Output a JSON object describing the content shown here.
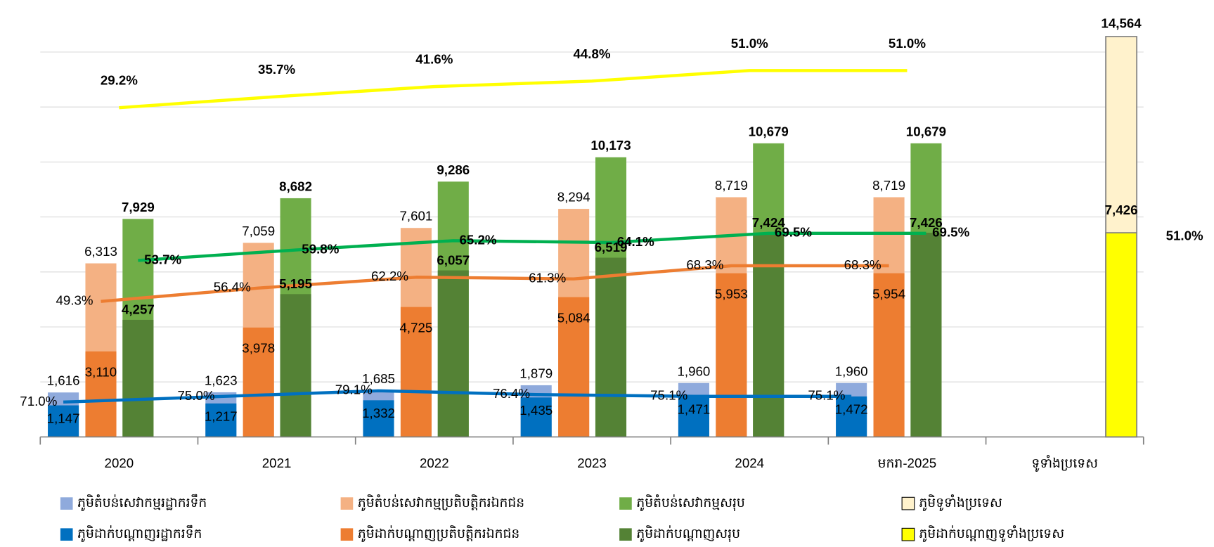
{
  "chart_data": {
    "type": "bar",
    "categories": [
      "2020",
      "2021",
      "2022",
      "2023",
      "2024",
      "មករា-2025",
      "ទូទាំងប្រទេស"
    ],
    "ylim": [
      0,
      15000
    ],
    "yticks": [
      0,
      2000,
      4000,
      6000,
      8000,
      10000,
      12000,
      14000
    ],
    "grid": true,
    "series": [
      {
        "name": "ភូមិតំបន់សេវាកម្មរដ្ឋាករទឹក",
        "color": "#8faadc",
        "values": [
          1616,
          1623,
          1685,
          1879,
          1960,
          1960,
          null
        ],
        "value_labels": [
          "1,616",
          "1,623",
          "1,685",
          "1,879",
          "1,960",
          "1,960",
          null
        ]
      },
      {
        "name": "ភូមិតំបន់សេវាកម្មប្រតិបត្តិករឯកជន",
        "color": "#f4b183",
        "values": [
          6313,
          7059,
          7601,
          8294,
          8719,
          8719,
          null
        ],
        "value_labels": [
          "6,313",
          "7,059",
          "7,601",
          "8,294",
          "8,719",
          "8,719",
          null
        ]
      },
      {
        "name": "ភូមិតំបន់សេវាកម្មសរុប",
        "color": "#70ad47",
        "values": [
          7929,
          8682,
          9286,
          10173,
          10679,
          10679,
          null
        ],
        "value_labels": [
          "7,929",
          "8,682",
          "9,286",
          "10,173",
          "10,679",
          "10,679",
          null
        ]
      },
      {
        "name": "ភូមិទូទាំងប្រទេស",
        "color": "#fff2cc",
        "values": [
          null,
          null,
          null,
          null,
          null,
          null,
          14564
        ],
        "value_labels": [
          null,
          null,
          null,
          null,
          null,
          null,
          "14,564"
        ]
      },
      {
        "name": "ភូមិដាក់បណ្ដាញរដ្ឋាករទឹក",
        "color": "#0070c0",
        "values": [
          1147,
          1217,
          1332,
          1435,
          1471,
          1472,
          null
        ],
        "value_labels": [
          "1,147",
          "1,217",
          "1,332",
          "1,435",
          "1,471",
          "1,472",
          null
        ]
      },
      {
        "name": "ភូមិដាក់បណ្ដាញប្រតិបត្តិករឯកជន",
        "color": "#ed7d31",
        "values": [
          3110,
          3978,
          4725,
          5084,
          5953,
          5954,
          null
        ],
        "value_labels": [
          "3,110",
          "3,978",
          "4,725",
          "5,084",
          "5,953",
          "5,954",
          null
        ]
      },
      {
        "name": "ភូមិដាក់បណ្ដាញសរុប",
        "color": "#548235",
        "values": [
          4257,
          5195,
          6057,
          6519,
          7424,
          7426,
          null
        ],
        "value_labels": [
          "4,257",
          "5,195",
          "6,057",
          "6,519",
          "7,424",
          "7,426",
          null
        ]
      },
      {
        "name": "ភូមិដាក់បណ្ដាញទូទាំងប្រទេស",
        "color": "#ffff00",
        "values": [
          null,
          null,
          null,
          null,
          null,
          null,
          7426
        ],
        "value_labels": [
          null,
          null,
          null,
          null,
          null,
          null,
          "7,426"
        ]
      }
    ],
    "lines": [
      {
        "type": "line",
        "color": "#0070c0",
        "ylim": [
          46,
          342
        ],
        "values": [
          71.0,
          75.0,
          79.1,
          76.4,
          75.1,
          75.1,
          null
        ],
        "value_labels": [
          "71.0%",
          "75.0%",
          "79.1%",
          "76.4%",
          "75.1%",
          "75.1%",
          null
        ]
      },
      {
        "type": "line",
        "color": "#ed7d31",
        "ylim": [
          -23,
          197
        ],
        "values": [
          49.3,
          56.4,
          62.2,
          61.3,
          68.3,
          68.3,
          null
        ],
        "value_labels": [
          "49.3%",
          "56.4%",
          "62.2%",
          "61.3%",
          "68.3%",
          "68.3%",
          null
        ]
      },
      {
        "type": "line",
        "color": "#00b050",
        "ylim": [
          -49,
          191
        ],
        "values": [
          53.7,
          59.8,
          65.2,
          64.1,
          69.5,
          69.5,
          null
        ],
        "value_labels": [
          "53.7%",
          "59.8%",
          "65.2%",
          "64.1%",
          "69.5%",
          "69.5%",
          null
        ]
      },
      {
        "type": "line",
        "color": "#ffff00",
        "ylim": [
          -164,
          78
        ],
        "values": [
          29.2,
          35.7,
          41.6,
          44.8,
          51.0,
          51.0,
          null
        ],
        "value_labels": [
          "29.2%",
          "35.7%",
          "41.6%",
          "44.8%",
          "51.0%",
          "51.0%",
          null
        ]
      }
    ],
    "annotations": [
      "51.0%"
    ]
  }
}
